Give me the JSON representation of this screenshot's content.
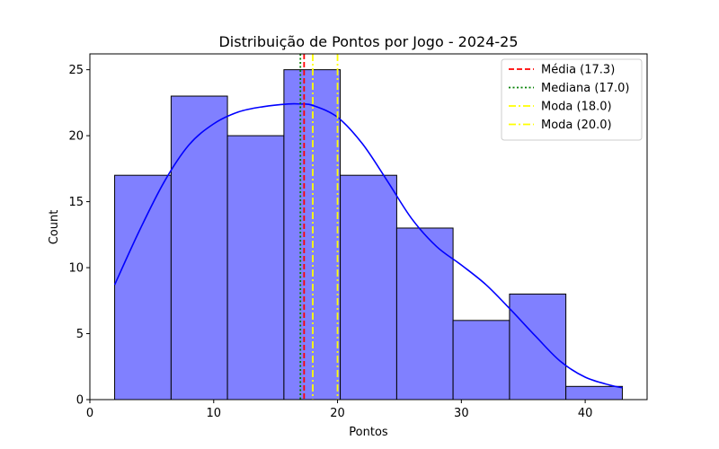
{
  "chart_data": {
    "type": "bar",
    "title": "Distribuição de Pontos por Jogo - 2024-25",
    "xlabel": "Pontos",
    "ylabel": "Count",
    "xlim": [
      0,
      45
    ],
    "ylim": [
      0,
      26.2
    ],
    "xticks": [
      0,
      10,
      20,
      30,
      40
    ],
    "yticks": [
      0,
      5,
      10,
      15,
      20,
      25
    ],
    "bins": [
      {
        "start": 2.0,
        "end": 6.56,
        "count": 17
      },
      {
        "start": 6.56,
        "end": 11.11,
        "count": 23
      },
      {
        "start": 11.11,
        "end": 15.67,
        "count": 20
      },
      {
        "start": 15.67,
        "end": 20.22,
        "count": 25
      },
      {
        "start": 20.22,
        "end": 24.78,
        "count": 17
      },
      {
        "start": 24.78,
        "end": 29.33,
        "count": 13
      },
      {
        "start": 29.33,
        "end": 33.89,
        "count": 6
      },
      {
        "start": 33.89,
        "end": 38.44,
        "count": 8
      },
      {
        "start": 38.44,
        "end": 43.0,
        "count": 1
      }
    ],
    "bar_color": "#8080ff",
    "kde": {
      "color": "#0000ff",
      "x": [
        2,
        4,
        6,
        8,
        10,
        12,
        14,
        16,
        17,
        18,
        20,
        22,
        24,
        26,
        28,
        30,
        32,
        34,
        36,
        38,
        40,
        42,
        43
      ],
      "y": [
        8.7,
        12.8,
        16.5,
        19.3,
        20.9,
        21.8,
        22.2,
        22.4,
        22.4,
        22.3,
        21.4,
        19.4,
        16.6,
        13.7,
        11.6,
        10.2,
        8.7,
        6.8,
        4.8,
        2.9,
        1.7,
        1.1,
        0.9
      ]
    },
    "vlines": [
      {
        "label": "Média (17.3)",
        "x": 17.3,
        "color": "#ff0000",
        "style": "dashed"
      },
      {
        "label": "Mediana (17.0)",
        "x": 17.0,
        "color": "#008000",
        "style": "dotted"
      },
      {
        "label": "Moda (18.0)",
        "x": 18.0,
        "color": "#ffff00",
        "style": "dashdot"
      },
      {
        "label": "Moda (20.0)",
        "x": 20.0,
        "color": "#ffff00",
        "style": "dashdot"
      }
    ],
    "legend_position": "top-right",
    "grid": false
  }
}
